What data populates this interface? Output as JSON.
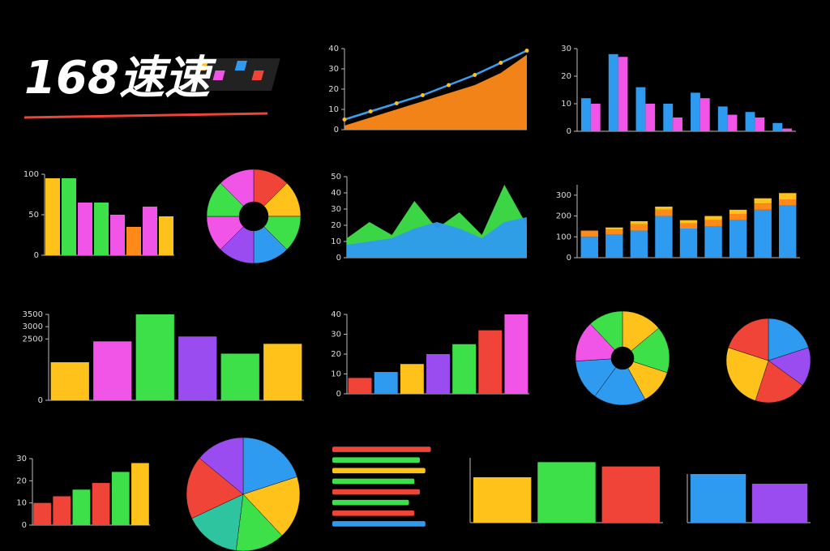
{
  "header": {
    "title": "168速速"
  },
  "chart_data": [
    {
      "type": "area",
      "ylim": [
        0,
        40
      ],
      "yticks": [
        0,
        10,
        20,
        30,
        40
      ],
      "series": [
        {
          "color": "#ff8a1a",
          "style": "area",
          "values": [
            2,
            6,
            10,
            14,
            18,
            22,
            28,
            37
          ]
        },
        {
          "color": "#3aa0f0",
          "style": "line",
          "values": [
            5,
            9,
            13,
            17,
            22,
            27,
            33,
            39
          ]
        }
      ]
    },
    {
      "type": "bar",
      "ylim": [
        0,
        30
      ],
      "yticks": [
        0,
        10,
        20,
        30
      ],
      "series": [
        {
          "color": "#2f9bf0",
          "values": [
            12,
            28,
            16,
            10,
            14,
            9,
            7,
            3
          ]
        },
        {
          "color": "#f055e8",
          "values": [
            10,
            27,
            10,
            5,
            12,
            6,
            5,
            1
          ]
        }
      ]
    },
    {
      "type": "bar",
      "ylim": [
        0,
        100
      ],
      "yticks": [
        0,
        50,
        100
      ],
      "values": [
        95,
        95,
        65,
        65,
        50,
        35,
        60,
        48
      ],
      "colors": [
        "#ffc21a",
        "#3ee04a",
        "#f055e8",
        "#3ee04a",
        "#f055e8",
        "#ff8a1a",
        "#f055e8",
        "#ffc21a"
      ]
    },
    {
      "type": "pie",
      "values": [
        12.5,
        12.5,
        12.5,
        12.5,
        12.5,
        12.5,
        12.5,
        12.5
      ],
      "colors": [
        "#f04438",
        "#ffc21a",
        "#3ee04a",
        "#2f9bf0",
        "#9b4cf0",
        "#f055e8",
        "#3ee04a",
        "#f055e8"
      ]
    },
    {
      "type": "area",
      "ylim": [
        0,
        50
      ],
      "yticks": [
        0,
        10,
        20,
        30,
        40,
        50
      ],
      "series": [
        {
          "color": "#3ee04a",
          "style": "area",
          "values": [
            12,
            22,
            14,
            35,
            18,
            28,
            14,
            45,
            20
          ]
        },
        {
          "color": "#2f9bf0",
          "style": "area",
          "values": [
            8,
            10,
            12,
            18,
            22,
            18,
            12,
            22,
            25
          ]
        }
      ]
    },
    {
      "type": "stacked",
      "ylim": [
        0,
        350
      ],
      "yticks": [
        0,
        100,
        200,
        300
      ],
      "series": [
        {
          "color": "#2f9bf0",
          "values": [
            100,
            110,
            130,
            200,
            140,
            150,
            180,
            230,
            250
          ]
        },
        {
          "color": "#ff8a1a",
          "values": [
            30,
            25,
            30,
            30,
            25,
            30,
            30,
            30,
            30
          ]
        },
        {
          "color": "#ffc21a",
          "values": [
            0,
            10,
            15,
            15,
            15,
            20,
            20,
            25,
            30
          ]
        }
      ]
    },
    {
      "type": "bar",
      "ylim": [
        0,
        3500
      ],
      "yticks": [
        0,
        2500,
        3000,
        3500
      ],
      "values": [
        1550,
        2400,
        3500,
        2600,
        1900,
        2300
      ],
      "colors": [
        "#ffc21a",
        "#f055e8",
        "#3ee04a",
        "#9b4cf0",
        "#3ee04a",
        "#ffc21a"
      ]
    },
    {
      "type": "bar",
      "ylim": [
        0,
        40
      ],
      "yticks": [
        0,
        10,
        20,
        30,
        40
      ],
      "values": [
        8,
        11,
        15,
        20,
        25,
        32,
        40
      ],
      "colors": [
        "#f04438",
        "#2f9bf0",
        "#ffc21a",
        "#9b4cf0",
        "#3ee04a",
        "#f04438",
        "#f055e8"
      ]
    },
    {
      "type": "pie",
      "values": [
        14,
        16,
        12,
        18,
        14,
        14,
        12
      ],
      "colors": [
        "#ffc21a",
        "#3ee04a",
        "#ffc21a",
        "#2f9bf0",
        "#2f9bf0",
        "#f055e8",
        "#3ee04a"
      ]
    },
    {
      "type": "pie",
      "values": [
        20,
        15,
        20,
        25,
        20
      ],
      "colors": [
        "#2f9bf0",
        "#9b4cf0",
        "#f04438",
        "#ffc21a",
        "#f04438"
      ]
    },
    {
      "type": "bar",
      "ylim": [
        0,
        30
      ],
      "yticks": [
        0,
        10,
        20,
        30
      ],
      "values": [
        10,
        13,
        16,
        19,
        24,
        28
      ],
      "colors": [
        "#f04438",
        "#f04438",
        "#3ee04a",
        "#f04438",
        "#3ee04a",
        "#ffc21a"
      ]
    },
    {
      "type": "pie",
      "values": [
        20,
        18,
        14,
        16,
        18,
        14
      ],
      "colors": [
        "#2f9bf0",
        "#ffc21a",
        "#3ee04a",
        "#2ec4a0",
        "#f04438",
        "#9b4cf0"
      ]
    },
    {
      "type": "hbar",
      "xlim": [
        0,
        100
      ],
      "values": [
        90,
        80,
        85,
        75,
        80,
        70,
        75,
        85
      ],
      "colors": [
        "#f04438",
        "#3ee04a",
        "#ffc21a",
        "#3ee04a",
        "#f04438",
        "#3ee04a",
        "#f04438",
        "#2f9bf0"
      ]
    },
    {
      "type": "bar",
      "ylim": [
        0,
        1500
      ],
      "values": [
        1050,
        1400,
        1300
      ],
      "colors": [
        "#ffc21a",
        "#3ee04a",
        "#f04438"
      ]
    },
    {
      "type": "bar",
      "ylim": [
        0,
        1500
      ],
      "values": [
        1500,
        1200
      ],
      "colors": [
        "#2f9bf0",
        "#9b4cf0"
      ]
    }
  ]
}
